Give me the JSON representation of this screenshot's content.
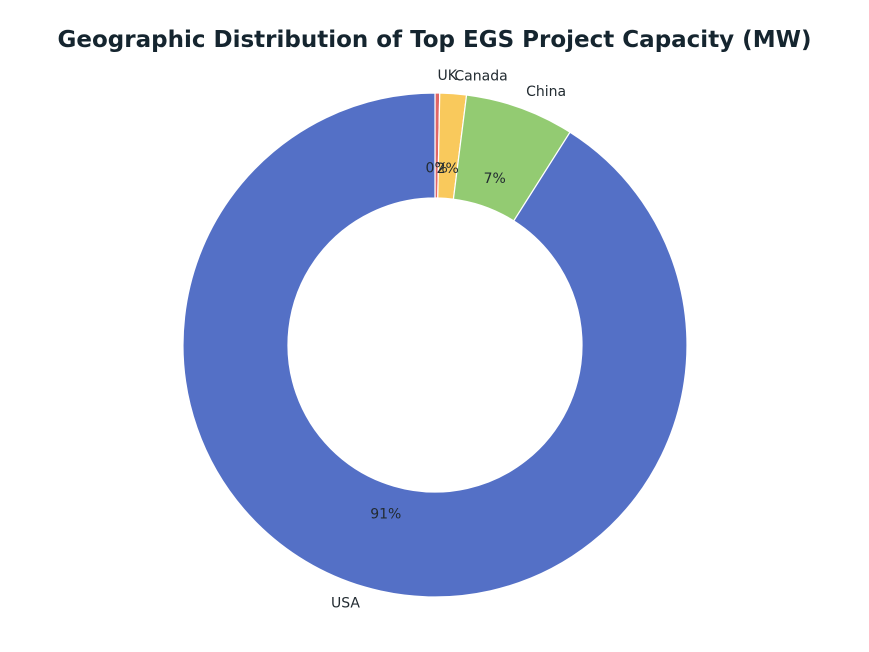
{
  "chart_data": {
    "type": "pie",
    "style": "donut",
    "title": "Geographic Distribution of Top EGS Project Capacity (MW)",
    "start_angle_deg": 90,
    "direction": "clockwise",
    "slices": [
      {
        "label": "UK",
        "value": 0.3,
        "pct_label": "0%",
        "color": "#e06666"
      },
      {
        "label": "Canada",
        "value": 1.7,
        "pct_label": "2%",
        "color": "#f9c95c"
      },
      {
        "label": "China",
        "value": 7.0,
        "pct_label": "7%",
        "color": "#93cb72"
      },
      {
        "label": "USA",
        "value": 91.0,
        "pct_label": "91%",
        "color": "#5470c6"
      }
    ]
  }
}
